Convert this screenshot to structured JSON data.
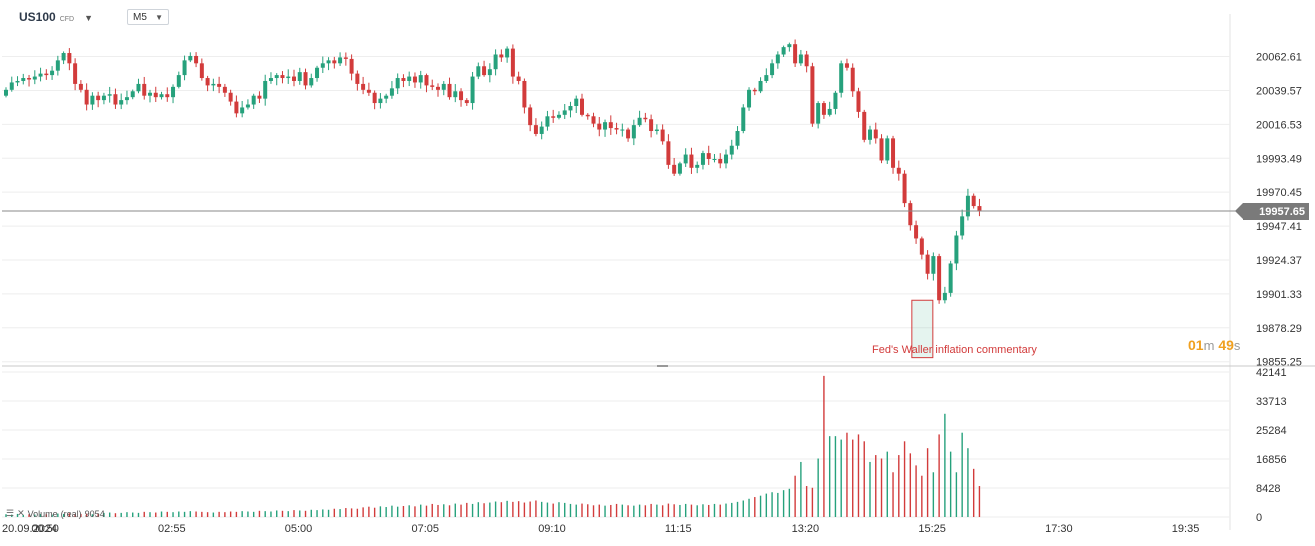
{
  "toolbar": {
    "symbol": "US100",
    "symbol_tag": "CFD",
    "timeframe": "M5"
  },
  "timer": {
    "minutes": "01",
    "minutes_unit": "m",
    "seconds": "49",
    "seconds_unit": "s"
  },
  "current_price_label": "19957.65",
  "annotation": "Fed's Waller inflation commentary",
  "volume_legend": {
    "name": "Volume",
    "mode": "(real)",
    "value": "9054"
  },
  "colors": {
    "bull": "#26a17c",
    "bear": "#d23b3b",
    "grid": "#eeeeee",
    "axis_text": "#333333",
    "price_line": "#8a8a8a"
  },
  "chart_data": [
    {
      "type": "candlestick",
      "y_ticks": [
        "20062.61",
        "20039.57",
        "20016.53",
        "19993.49",
        "19970.45",
        "19947.41",
        "19924.37",
        "19901.33",
        "19878.29",
        "19855.25"
      ],
      "x_ticks": [
        "20.09.2024",
        "00:50",
        "02:55",
        "05:00",
        "07:05",
        "09:10",
        "11:15",
        "13:20",
        "15:25",
        "17:30",
        "19:35"
      ],
      "ylim": [
        19853,
        20082
      ],
      "current_price": 19957.65,
      "annotation": {
        "text": "Fed's Waller inflation commentary",
        "at_bar": 159,
        "low": 19858,
        "high": 19897
      },
      "closes": [
        20040,
        20045,
        20046,
        20048,
        20047,
        20049,
        20051,
        20050,
        20053,
        20060,
        20065,
        20058,
        20044,
        20040,
        20030,
        20036,
        20033,
        20036,
        20037,
        20030,
        20033,
        20035,
        20039,
        20044,
        20036,
        20038,
        20035,
        20037,
        20035,
        20042,
        20050,
        20060,
        20063,
        20058,
        20048,
        20043,
        20044,
        20042,
        20038,
        20032,
        20024,
        20028,
        20030,
        20036,
        20034,
        20046,
        20048,
        20050,
        20048,
        20049,
        20046,
        20052,
        20043,
        20048,
        20055,
        20058,
        20060,
        20058,
        20062,
        20061,
        20051,
        20044,
        20040,
        20038,
        20031,
        20034,
        20036,
        20041,
        20048,
        20046,
        20049,
        20045,
        20050,
        20043,
        20042,
        20040,
        20044,
        20035,
        20039,
        20033,
        20031,
        20049,
        20056,
        20050,
        20054,
        20064,
        20062,
        20068,
        20049,
        20046,
        20028,
        20016,
        20010,
        20015,
        20022,
        20021,
        20023,
        20026,
        20029,
        20034,
        20023,
        20022,
        20017,
        20013,
        20018,
        20014,
        20013,
        20013,
        20007,
        20016,
        20021,
        20020,
        20012,
        20013,
        20005,
        19989,
        19983,
        19990,
        19996,
        19987,
        19989,
        19997,
        19993,
        19993,
        19990,
        19996,
        20002,
        20012,
        20028,
        20040,
        20039,
        20046,
        20050,
        20058,
        20064,
        20069,
        20071,
        20058,
        20064,
        20056,
        20017,
        20031,
        20023,
        20027,
        20038,
        20058,
        20055,
        20039,
        20025,
        20006,
        20013,
        20007,
        19992,
        20007,
        19987,
        19983,
        19963,
        19948,
        19939,
        19928,
        19915,
        19927,
        19897,
        19902,
        19922,
        19941,
        19954,
        19968,
        19961,
        19958
      ]
    },
    {
      "type": "bar",
      "series": [
        {
          "name": "Volume",
          "values": [
            800,
            700,
            900,
            600,
            800,
            700,
            900,
            800,
            700,
            1000,
            900,
            1100,
            800,
            900,
            1000,
            800,
            900,
            1200,
            1300,
            1100,
            1200,
            1400,
            1300,
            1200,
            1500,
            1400,
            1300,
            1600,
            1500,
            1400,
            1600,
            1500,
            1700,
            1600,
            1500,
            1400,
            1300,
            1500,
            1400,
            1600,
            1500,
            1700,
            1600,
            1500,
            1800,
            1700,
            1600,
            1900,
            1800,
            1700,
            2000,
            1900,
            1800,
            2100,
            2000,
            2200,
            2100,
            2400,
            2300,
            2600,
            2500,
            2400,
            2800,
            3000,
            2700,
            3100,
            2900,
            3300,
            3000,
            3200,
            3400,
            3100,
            3600,
            3300,
            3800,
            3500,
            3700,
            3400,
            3900,
            3600,
            4100,
            3800,
            4300,
            4000,
            4200,
            4500,
            4300,
            4700,
            4400,
            4600,
            4200,
            4500,
            4800,
            4400,
            4200,
            3900,
            4300,
            4100,
            3800,
            3600,
            3900,
            3700,
            3400,
            3600,
            3300,
            3500,
            3800,
            3600,
            3400,
            3300,
            3600,
            3400,
            3800,
            3600,
            3400,
            3900,
            3700,
            3500,
            3800,
            3600,
            3400,
            3700,
            3500,
            3800,
            3600,
            3900,
            4100,
            4400,
            4800,
            5300,
            5800,
            6200,
            6800,
            7200,
            7000,
            7800,
            8200,
            12000,
            16000,
            9000,
            8500,
            17000,
            41000,
            23500,
            23500,
            22500,
            24500,
            22500,
            24000,
            22000,
            16000,
            18000,
            17000,
            19000,
            13000,
            18000,
            22000,
            18500,
            15000,
            12000,
            20000,
            13000,
            24000,
            30000,
            19000,
            13000,
            24500,
            20000,
            14000,
            9000
          ]
        }
      ],
      "ylim": [
        0,
        42141
      ],
      "y_ticks": [
        "42141",
        "33713",
        "25284",
        "16856",
        "8428",
        "0"
      ]
    }
  ]
}
